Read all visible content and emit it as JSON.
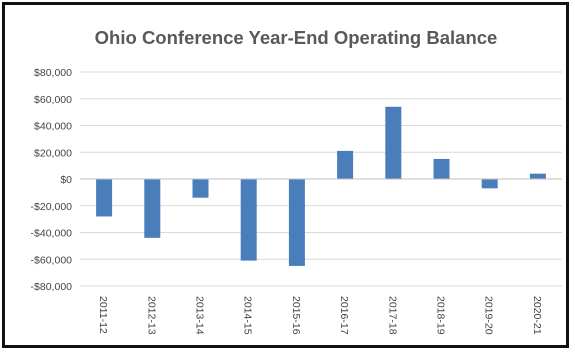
{
  "chart_data": {
    "type": "bar",
    "title": "Ohio Conference Year-End Operating Balance",
    "xlabel": "",
    "ylabel": "",
    "categories": [
      "2011-12",
      "2012-13",
      "2013-14",
      "2014-15",
      "2015-16",
      "2016-17",
      "2017-18",
      "2018-19",
      "2019-20",
      "2020-21"
    ],
    "values": [
      -28000,
      -44000,
      -14000,
      -61000,
      -65000,
      21000,
      54000,
      15000,
      -7000,
      4000
    ],
    "ylim": [
      -80000,
      80000
    ],
    "ytick_values": [
      80000,
      60000,
      40000,
      20000,
      0,
      -20000,
      -40000,
      -60000,
      -80000
    ],
    "ytick_labels": [
      "$80,000",
      "$60,000",
      "$40,000",
      "$20,000",
      "$0",
      "-$20,000",
      "-$40,000",
      "-$60,000",
      "-$80,000"
    ],
    "grid": true,
    "legend": "none",
    "colors": {
      "bar": "#4a7ebb",
      "grid": "#d9d9d9",
      "title": "#595959",
      "tick": "#444444"
    }
  }
}
